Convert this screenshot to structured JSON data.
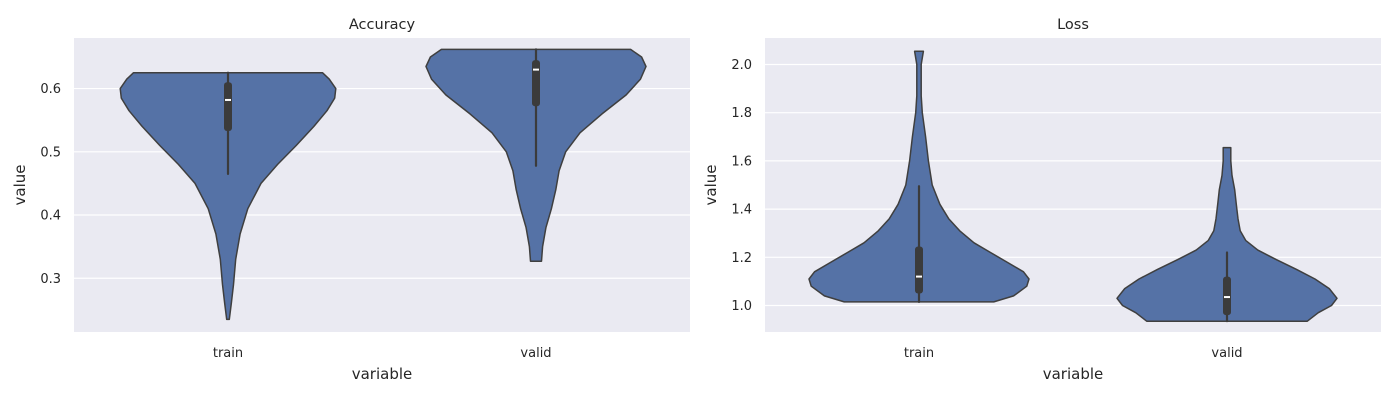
{
  "chart_data": [
    {
      "type": "violin",
      "title": "Accuracy",
      "xlabel": "variable",
      "ylabel": "value",
      "categories": [
        "train",
        "valid"
      ],
      "ylim": [
        0.215,
        0.68
      ],
      "yticks": [
        0.3,
        0.4,
        0.5,
        0.6
      ],
      "ytick_labels": [
        "0.3",
        "0.4",
        "0.5",
        "0.6"
      ],
      "grid": true,
      "violins": [
        {
          "category": "train",
          "min": 0.235,
          "max": 0.625,
          "whisker_low": 0.465,
          "q1": 0.533,
          "median": 0.582,
          "q3": 0.61,
          "whisker_high": 0.625,
          "density": [
            [
              0.235,
              0.012
            ],
            [
              0.26,
              0.03
            ],
            [
              0.29,
              0.05
            ],
            [
              0.33,
              0.07
            ],
            [
              0.37,
              0.11
            ],
            [
              0.41,
              0.18
            ],
            [
              0.45,
              0.3
            ],
            [
              0.48,
              0.45
            ],
            [
              0.51,
              0.62
            ],
            [
              0.54,
              0.78
            ],
            [
              0.565,
              0.9
            ],
            [
              0.585,
              0.97
            ],
            [
              0.6,
              0.98
            ],
            [
              0.615,
              0.92
            ],
            [
              0.625,
              0.86
            ]
          ]
        },
        {
          "category": "valid",
          "min": 0.327,
          "max": 0.662,
          "whisker_low": 0.478,
          "q1": 0.572,
          "median": 0.63,
          "q3": 0.645,
          "whisker_high": 0.662,
          "density": [
            [
              0.327,
              0.05
            ],
            [
              0.35,
              0.06
            ],
            [
              0.38,
              0.09
            ],
            [
              0.41,
              0.14
            ],
            [
              0.44,
              0.18
            ],
            [
              0.47,
              0.21
            ],
            [
              0.5,
              0.27
            ],
            [
              0.53,
              0.4
            ],
            [
              0.56,
              0.6
            ],
            [
              0.59,
              0.82
            ],
            [
              0.615,
              0.95
            ],
            [
              0.635,
              1.0
            ],
            [
              0.65,
              0.96
            ],
            [
              0.662,
              0.86
            ]
          ]
        }
      ]
    },
    {
      "type": "violin",
      "title": "Loss",
      "xlabel": "variable",
      "ylabel": "value",
      "categories": [
        "train",
        "valid"
      ],
      "ylim": [
        0.89,
        2.11
      ],
      "yticks": [
        1.0,
        1.2,
        1.4,
        1.6,
        1.8,
        2.0
      ],
      "ytick_labels": [
        "1.0",
        "1.2",
        "1.4",
        "1.6",
        "1.8",
        "2.0"
      ],
      "grid": true,
      "violins": [
        {
          "category": "train",
          "min": 1.015,
          "max": 2.055,
          "whisker_low": 1.015,
          "q1": 1.05,
          "median": 1.12,
          "q3": 1.245,
          "whisker_high": 1.495,
          "density": [
            [
              1.015,
              0.68
            ],
            [
              1.04,
              0.86
            ],
            [
              1.08,
              0.98
            ],
            [
              1.11,
              1.0
            ],
            [
              1.14,
              0.95
            ],
            [
              1.18,
              0.8
            ],
            [
              1.22,
              0.65
            ],
            [
              1.26,
              0.5
            ],
            [
              1.31,
              0.37
            ],
            [
              1.36,
              0.27
            ],
            [
              1.42,
              0.19
            ],
            [
              1.5,
              0.12
            ],
            [
              1.6,
              0.085
            ],
            [
              1.7,
              0.06
            ],
            [
              1.8,
              0.03
            ],
            [
              1.87,
              0.02
            ],
            [
              1.93,
              0.02
            ],
            [
              2.0,
              0.02
            ],
            [
              2.055,
              0.04
            ]
          ]
        },
        {
          "category": "valid",
          "min": 0.935,
          "max": 1.655,
          "whisker_low": 0.935,
          "q1": 0.96,
          "median": 1.035,
          "q3": 1.12,
          "whisker_high": 1.22,
          "density": [
            [
              0.935,
              0.73
            ],
            [
              0.97,
              0.83
            ],
            [
              1.0,
              0.95
            ],
            [
              1.03,
              1.0
            ],
            [
              1.07,
              0.93
            ],
            [
              1.11,
              0.8
            ],
            [
              1.15,
              0.63
            ],
            [
              1.19,
              0.45
            ],
            [
              1.23,
              0.28
            ],
            [
              1.27,
              0.17
            ],
            [
              1.31,
              0.12
            ],
            [
              1.36,
              0.1
            ],
            [
              1.42,
              0.085
            ],
            [
              1.48,
              0.07
            ],
            [
              1.54,
              0.045
            ],
            [
              1.6,
              0.035
            ],
            [
              1.655,
              0.035
            ]
          ]
        }
      ]
    }
  ]
}
